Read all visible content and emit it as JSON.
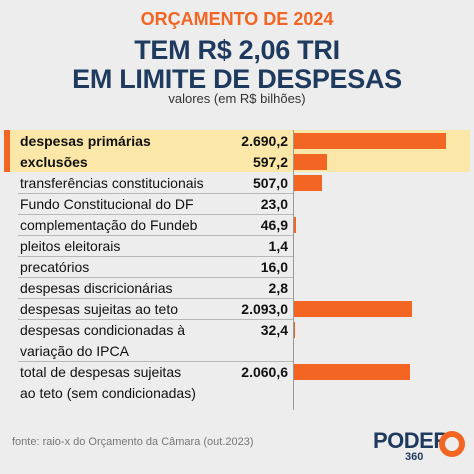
{
  "header": {
    "kicker": "ORÇAMENTO DE 2024",
    "title_line1": "TEM R$ 2,06 TRI",
    "title_line2": "EM LIMITE DE DESPESAS",
    "subtitle": "valores (em R$ bilhões)"
  },
  "chart_data": {
    "type": "bar",
    "orientation": "horizontal",
    "bar_color": "#f26522",
    "highlight_color": "#fbe7a8",
    "categories": [
      "despesas primárias",
      "exclusões",
      "transferências constitucionais",
      "Fundo Constitucional do DF",
      "complementação do Fundeb",
      "pleitos eleitorais",
      "precatórios",
      "despesas discricionárias",
      "despesas sujeitas ao teto",
      "despesas condicionadas à variação do IPCA",
      "total de despesas sujeitas ao teto (sem condicionadas)"
    ],
    "labels": [
      [
        "despesas primárias"
      ],
      [
        "exclusões"
      ],
      [
        "transferências constitucionais"
      ],
      [
        "Fundo Constitucional do DF"
      ],
      [
        "complementação do Fundeb"
      ],
      [
        "pleitos eleitorais"
      ],
      [
        "precatórios"
      ],
      [
        "despesas discricionárias"
      ],
      [
        "despesas sujeitas ao teto"
      ],
      [
        "despesas condicionadas à",
        "variação do IPCA"
      ],
      [
        "total de despesas sujeitas",
        "ao teto (sem condicionadas)"
      ]
    ],
    "values": [
      2690.2,
      597.2,
      507.0,
      23.0,
      46.9,
      1.4,
      16.0,
      2.8,
      2093.0,
      32.4,
      2060.6
    ],
    "value_labels": [
      "2.690,2",
      "597,2",
      "507,0",
      "23,0",
      "46,9",
      "1,4",
      "16,0",
      "2,8",
      "2.093,0",
      "32,4",
      "2.060,6"
    ],
    "highlighted": [
      true,
      true,
      false,
      false,
      false,
      false,
      false,
      false,
      false,
      false,
      false
    ]
  },
  "footer": {
    "source": "fonte: raio-x do Orçamento da Câmara (out.2023)",
    "logo_text": "PODER",
    "logo_sub": "360"
  }
}
